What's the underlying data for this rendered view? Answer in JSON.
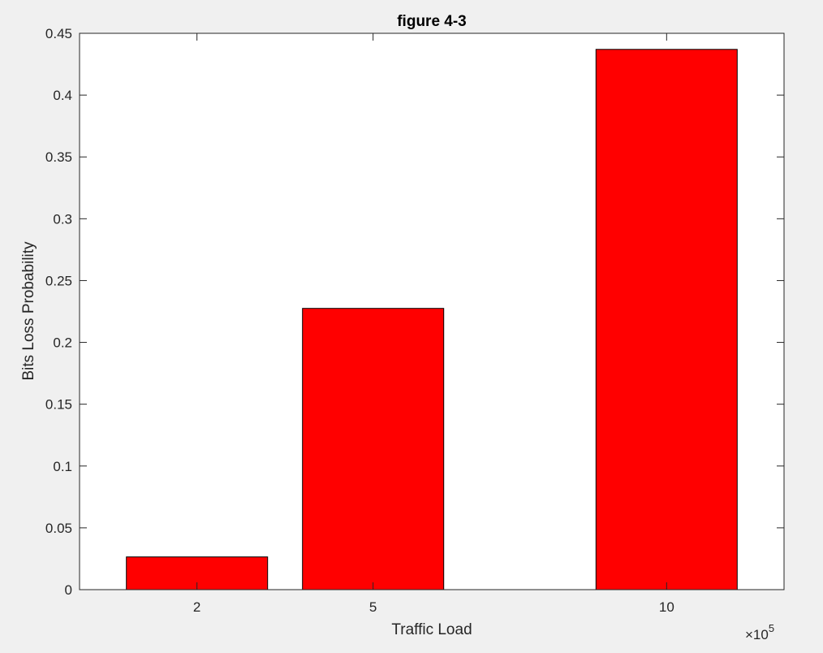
{
  "chart_data": {
    "type": "bar",
    "title": "figure 4-3",
    "xlabel": "Traffic Load",
    "ylabel": "Bits Loss Probability",
    "x": [
      2,
      5,
      10
    ],
    "x_tick_labels": [
      "2",
      "5",
      "10"
    ],
    "x_exponent_label": {
      "base": "×10",
      "power": "5"
    },
    "values": [
      0.0265,
      0.2275,
      0.437
    ],
    "xlim": [
      0,
      12
    ],
    "ylim": [
      0,
      0.45
    ],
    "y_ticks": [
      0,
      0.05,
      0.1,
      0.15,
      0.2,
      0.25,
      0.3,
      0.35,
      0.4,
      0.45
    ],
    "y_tick_labels": [
      "0",
      "0.05",
      "0.1",
      "0.15",
      "0.2",
      "0.25",
      "0.3",
      "0.35",
      "0.4",
      "0.45"
    ],
    "bar_color": "#ff0000",
    "bar_edge_color": "#000000",
    "grid": false,
    "legend": "none"
  }
}
